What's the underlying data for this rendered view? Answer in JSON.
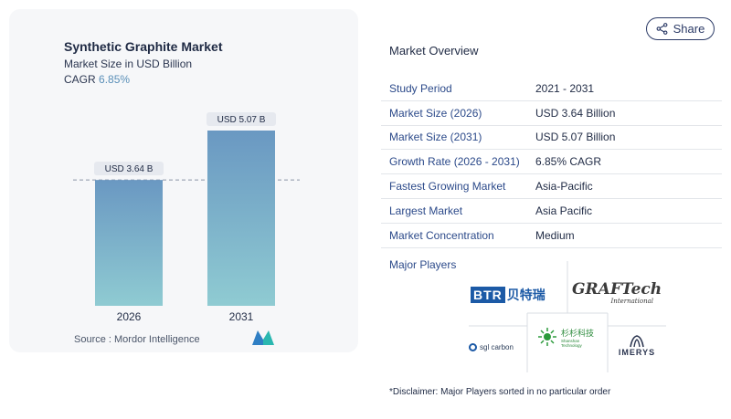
{
  "header": {
    "share_label": "Share",
    "share_icon": "share-icon"
  },
  "chart_card": {
    "title": "Synthetic Graphite Market",
    "subtitle": "Market Size in USD Billion",
    "cagr_label": "CAGR",
    "cagr_value": "6.85%",
    "source": "Source :  Mordor Intelligence"
  },
  "chart_data": {
    "type": "bar",
    "categories": [
      "2026",
      "2031"
    ],
    "values": [
      3.64,
      5.07
    ],
    "data_labels": [
      "USD 3.64 B",
      "USD 5.07 B"
    ],
    "title": "Synthetic Graphite Market",
    "subtitle": "Market Size in USD Billion",
    "xlabel": "",
    "ylabel": "",
    "ylim": [
      0,
      5.07
    ],
    "grid": false,
    "reference_line": 3.64,
    "colors": {
      "bar_top": "#6a98c2",
      "bar_bottom": "#8fcbd2",
      "label_bg": "#e6e9ef"
    }
  },
  "overview": {
    "title": "Market Overview",
    "rows": [
      {
        "label": "Study Period",
        "value": "2021 - 2031"
      },
      {
        "label": "Market Size (2026)",
        "value": "USD 3.64 Billion"
      },
      {
        "label": "Market Size (2031)",
        "value": "USD 5.07 Billion"
      },
      {
        "label": "Growth Rate (2026 - 2031)",
        "value": "6.85% CAGR"
      },
      {
        "label": "Fastest Growing Market",
        "value": "Asia-Pacific"
      },
      {
        "label": "Largest Market",
        "value": "Asia Pacific"
      },
      {
        "label": "Market Concentration",
        "value": "Medium"
      }
    ]
  },
  "players": {
    "title": "Major Players",
    "btr": {
      "latin": "BTR",
      "cn": "贝特瑞"
    },
    "graftech": {
      "main": "GRAFTech",
      "sub": "International"
    },
    "sgl": {
      "name": "sgl carbon"
    },
    "shanshan": {
      "cn": "杉杉科技",
      "en": "Shanshan Technology"
    },
    "imerys": {
      "name": "IMERYS"
    }
  },
  "disclaimer": "*Disclaimer: Major Players sorted in no particular order"
}
